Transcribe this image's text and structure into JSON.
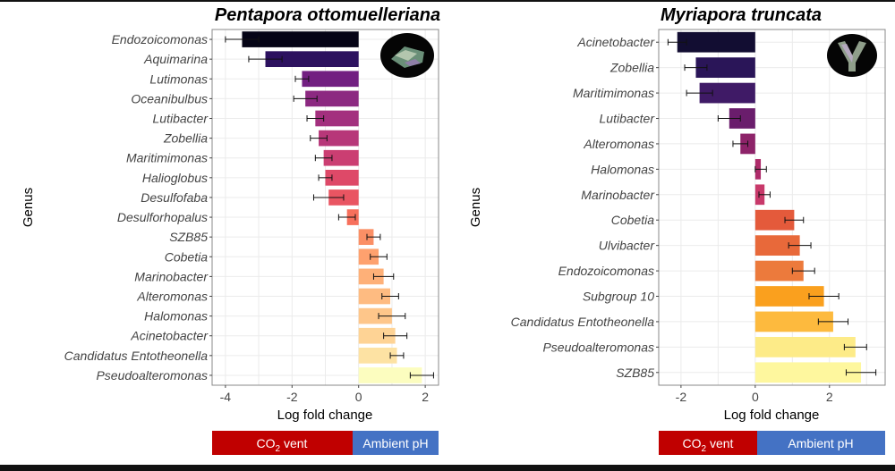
{
  "chart_data": [
    {
      "type": "bar",
      "orientation": "horizontal",
      "title": "Pentapora ottomuelleriana",
      "xlabel": "Log fold change",
      "ylabel": "Genus",
      "xlim": [
        -4.4,
        2.4
      ],
      "xticks": [
        -4,
        -2,
        0,
        2
      ],
      "categories": [
        "Endozoicomonas",
        "Aquimarina",
        "Lutimonas",
        "Oceanibulbus",
        "Lutibacter",
        "Zobellia",
        "Maritimimonas",
        "Halioglobus",
        "Desulfofaba",
        "Desulforhopalus",
        "SZB85",
        "Cobetia",
        "Marinobacter",
        "Alteromonas",
        "Halomonas",
        "Acinetobacter",
        "Candidatus Entotheonella",
        "Pseudoalteromonas"
      ],
      "values": [
        -3.5,
        -2.8,
        -1.7,
        -1.6,
        -1.3,
        -1.2,
        -1.05,
        -1.0,
        -0.9,
        -0.35,
        0.45,
        0.6,
        0.75,
        0.95,
        1.0,
        1.1,
        1.15,
        1.9
      ],
      "errors": [
        0.5,
        0.5,
        0.2,
        0.35,
        0.25,
        0.25,
        0.25,
        0.2,
        0.45,
        0.25,
        0.2,
        0.25,
        0.3,
        0.25,
        0.4,
        0.35,
        0.2,
        0.35
      ],
      "colors": [
        "#050416",
        "#2c115f",
        "#721f81",
        "#8c2981",
        "#a3307e",
        "#b73779",
        "#cb3e72",
        "#de4968",
        "#e95562",
        "#f7705c",
        "#fb8f65",
        "#fea16e",
        "#feb078",
        "#febb81",
        "#fec68a",
        "#fed395",
        "#fde2a3",
        "#fcfdbf"
      ],
      "legend": {
        "left_label": "CO2 vent",
        "right_label": "Ambient pH",
        "left_color": "#c00000",
        "right_color": "#4472c4"
      }
    },
    {
      "type": "bar",
      "orientation": "horizontal",
      "title": "Myriapora truncata",
      "xlabel": "Log fold change",
      "ylabel": "Genus",
      "xlim": [
        -2.6,
        3.5
      ],
      "xticks": [
        -2,
        0,
        2
      ],
      "categories": [
        "Acinetobacter",
        "Zobellia",
        "Maritimimonas",
        "Lutibacter",
        "Alteromonas",
        "Halomonas",
        "Marinobacter",
        "Cobetia",
        "Ulvibacter",
        "Endozoicomonas",
        "Subgroup 10",
        "Candidatus Entotheonella",
        "Pseudoalteromonas",
        "SZB85"
      ],
      "values": [
        -2.1,
        -1.6,
        -1.5,
        -0.7,
        -0.4,
        0.15,
        0.25,
        1.05,
        1.2,
        1.3,
        1.85,
        2.1,
        2.7,
        2.85
      ],
      "errors": [
        0.25,
        0.3,
        0.35,
        0.3,
        0.2,
        0.15,
        0.15,
        0.25,
        0.3,
        0.3,
        0.4,
        0.4,
        0.3,
        0.4
      ],
      "colors": [
        "#120d32",
        "#2a1558",
        "#3f1a66",
        "#6a1d6c",
        "#8d2369",
        "#ae2b6a",
        "#c8396a",
        "#e45a3b",
        "#e8693a",
        "#ec7a3c",
        "#faa01e",
        "#fdba3e",
        "#fdeb88",
        "#fef79e"
      ],
      "legend": {
        "left_label": "CO2 vent",
        "right_label": "Ambient pH",
        "left_color": "#c00000",
        "right_color": "#4472c4"
      }
    }
  ]
}
